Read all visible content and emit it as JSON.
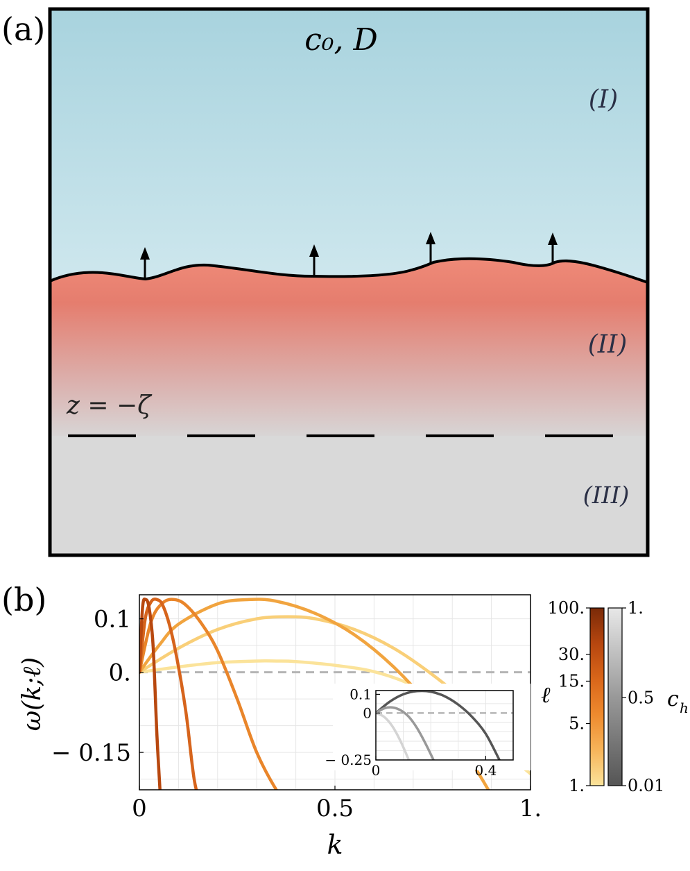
{
  "panel_a": {
    "label": "(a)",
    "top_label": "c₀, D",
    "region_labels": [
      "(I)",
      "(II)",
      "(III)"
    ],
    "boundary_label": "z = −ζ"
  },
  "panel_b": {
    "label": "(b)",
    "colorbar_l": {
      "label": "ℓ",
      "ticks": [
        "100.",
        "30.",
        "15.",
        "5.",
        "1."
      ],
      "scale": "log",
      "colors": [
        "#fbe39a",
        "#f6b45a",
        "#ee8a2e",
        "#d9661a",
        "#b6460f",
        "#7a2a08"
      ]
    },
    "colorbar_ch": {
      "label": "c_h",
      "ticks": [
        "1.",
        "0.5",
        "0.01"
      ],
      "colors": [
        "#555555",
        "#999999",
        "#e8e8e8"
      ]
    }
  },
  "chart_data": [
    {
      "type": "line",
      "xlabel": "k",
      "ylabel": "ω(k;ℓ)",
      "xlim": [
        0,
        1
      ],
      "ylim": [
        -0.22,
        0.145
      ],
      "xticks": [
        {
          "v": 0,
          "t": "0"
        },
        {
          "v": 0.5,
          "t": "0.5"
        },
        {
          "v": 1,
          "t": "1."
        }
      ],
      "yticks": [
        {
          "v": 0.1,
          "t": "0.1"
        },
        {
          "v": 0,
          "t": "0."
        },
        {
          "v": -0.15,
          "t": "− 0.15"
        }
      ],
      "reference_line": 0,
      "grid": true,
      "series": [
        {
          "color": "#fbe39a",
          "x": [
            0,
            0.1,
            0.2,
            0.3,
            0.35,
            0.4,
            0.5,
            0.6,
            0.7,
            0.8,
            0.9,
            1.0
          ],
          "y": [
            0,
            0.01,
            0.018,
            0.021,
            0.021,
            0.02,
            0.013,
            0.001,
            -0.025,
            -0.07,
            -0.13,
            -0.19
          ]
        },
        {
          "color": "#f9cf78",
          "x": [
            0,
            0.1,
            0.2,
            0.3,
            0.38,
            0.45,
            0.55,
            0.65,
            0.75,
            0.85,
            0.95,
            1.0
          ],
          "y": [
            0,
            0.045,
            0.08,
            0.1,
            0.104,
            0.1,
            0.08,
            0.045,
            -0.005,
            -0.065,
            -0.135,
            -0.17
          ]
        },
        {
          "color": "#f1a43f",
          "x": [
            0,
            0.05,
            0.1,
            0.2,
            0.28,
            0.35,
            0.45,
            0.55,
            0.65,
            0.75,
            0.85,
            0.9
          ],
          "y": [
            0,
            0.05,
            0.09,
            0.128,
            0.136,
            0.133,
            0.11,
            0.07,
            0.01,
            -0.07,
            -0.17,
            -0.23
          ]
        },
        {
          "color": "#e9852a",
          "x": [
            0,
            0.03,
            0.06,
            0.09,
            0.12,
            0.16,
            0.2,
            0.25,
            0.3,
            0.35,
            0.4
          ],
          "y": [
            0,
            0.095,
            0.13,
            0.136,
            0.125,
            0.09,
            0.04,
            -0.05,
            -0.15,
            -0.22,
            -0.27
          ]
        },
        {
          "color": "#d6641c",
          "x": [
            0,
            0.015,
            0.03,
            0.045,
            0.06,
            0.08,
            0.1,
            0.12,
            0.14,
            0.16
          ],
          "y": [
            0,
            0.1,
            0.132,
            0.136,
            0.125,
            0.08,
            0.01,
            -0.08,
            -0.2,
            -0.26
          ]
        },
        {
          "color": "#b8480f",
          "x": [
            0,
            0.008,
            0.016,
            0.025,
            0.035,
            0.045,
            0.055
          ],
          "y": [
            0,
            0.12,
            0.136,
            0.12,
            0.05,
            -0.12,
            -0.25
          ]
        }
      ]
    },
    {
      "type": "line",
      "xlim": [
        0,
        0.5
      ],
      "ylim": [
        -0.25,
        0.12
      ],
      "xticks": [
        {
          "v": 0,
          "t": "0"
        },
        {
          "v": 0.4,
          "t": "0.4"
        }
      ],
      "yticks": [
        {
          "v": 0.1,
          "t": "0.1"
        },
        {
          "v": 0,
          "t": "0"
        },
        {
          "v": -0.25,
          "t": "− 0.25"
        }
      ],
      "reference_line": 0,
      "grid": true,
      "series": [
        {
          "color": "#555555",
          "x": [
            0,
            0.05,
            0.1,
            0.15,
            0.2,
            0.25,
            0.3,
            0.35,
            0.4,
            0.45
          ],
          "y": [
            0,
            0.06,
            0.1,
            0.117,
            0.114,
            0.09,
            0.045,
            -0.02,
            -0.11,
            -0.25
          ]
        },
        {
          "color": "#999999",
          "x": [
            0,
            0.03,
            0.06,
            0.09,
            0.12,
            0.15,
            0.18,
            0.21
          ],
          "y": [
            0,
            0.025,
            0.03,
            0.015,
            -0.02,
            -0.08,
            -0.16,
            -0.25
          ]
        },
        {
          "color": "#d4d4d4",
          "x": [
            0,
            0.03,
            0.06,
            0.09,
            0.12
          ],
          "y": [
            0,
            -0.02,
            -0.07,
            -0.15,
            -0.25
          ]
        }
      ]
    }
  ]
}
